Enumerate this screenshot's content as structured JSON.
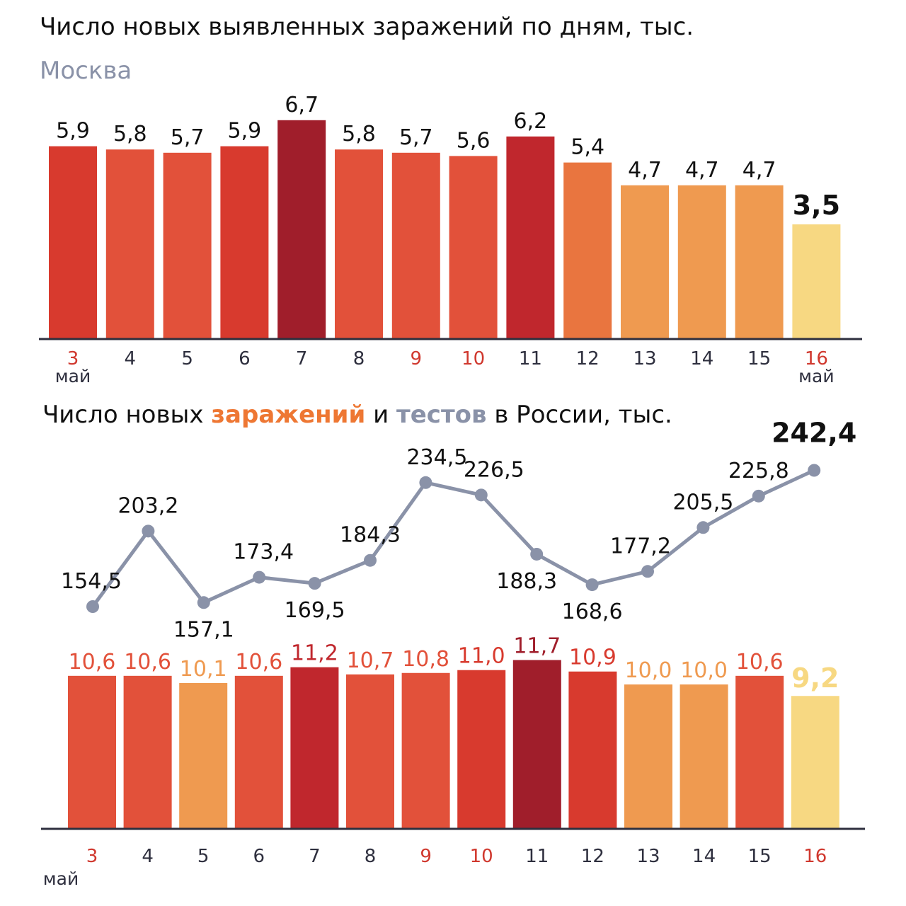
{
  "charts": {
    "moscow": {
      "title": "Число новых выявленных заражений по дням, тыс.",
      "subtitle": "Москва"
    },
    "russia": {
      "title_parts": [
        "Число новых ",
        "заражений",
        " и ",
        "тестов",
        " в России, тыс."
      ]
    }
  },
  "colors": {
    "darkest": "#a01e2b",
    "dark": "#c0272d",
    "red": "#d83a2e",
    "redorange": "#e2513a",
    "orange": "#e9753f",
    "lightorange": "#ef9a50",
    "yellow": "#f7d882",
    "axis": "#2e2f3e",
    "line": "#8a92a8",
    "weekend": "#d0382e",
    "text": "#111111"
  },
  "chart_data": [
    {
      "type": "bar",
      "title": "Число новых выявленных заражений по дням, тыс.",
      "subtitle": "Москва",
      "categories": [
        "3",
        "4",
        "5",
        "6",
        "7",
        "8",
        "9",
        "10",
        "11",
        "12",
        "13",
        "14",
        "15",
        "16"
      ],
      "month_label_start": "май",
      "month_label_end": "май",
      "values": [
        5.9,
        5.8,
        5.7,
        5.9,
        6.7,
        5.8,
        5.7,
        5.6,
        6.2,
        5.4,
        4.7,
        4.7,
        4.7,
        3.5
      ],
      "labels": [
        "5,9",
        "5,8",
        "5,7",
        "5,9",
        "6,7",
        "5,8",
        "5,7",
        "5,6",
        "6,2",
        "5,4",
        "4,7",
        "4,7",
        "4,7",
        "3,5"
      ],
      "bar_colors": [
        "red",
        "redorange",
        "redorange",
        "red",
        "darkest",
        "redorange",
        "redorange",
        "redorange",
        "dark",
        "orange",
        "lightorange",
        "lightorange",
        "lightorange",
        "yellow"
      ],
      "weekend_ticks": [
        "3",
        "9",
        "10",
        "16"
      ],
      "ylim": [
        0,
        7
      ]
    },
    {
      "type": "bar+line",
      "categories": [
        "3",
        "4",
        "5",
        "6",
        "7",
        "8",
        "9",
        "10",
        "11",
        "12",
        "13",
        "14",
        "15",
        "16"
      ],
      "month_label_start": "май",
      "series": [
        {
          "name": "тестов",
          "type": "line",
          "values": [
            154.5,
            203.2,
            157.1,
            173.4,
            169.5,
            184.3,
            234.5,
            226.5,
            188.3,
            168.6,
            177.2,
            205.5,
            225.8,
            242.4
          ],
          "labels": [
            "154,5",
            "203,2",
            "157,1",
            "173,4",
            "169,5",
            "184,3",
            "234,5",
            "226,5",
            "188,3",
            "168,6",
            "177,2",
            "205,5",
            "225,8",
            "242,4"
          ]
        },
        {
          "name": "заражений",
          "type": "bar",
          "values": [
            10.6,
            10.6,
            10.1,
            10.6,
            11.2,
            10.7,
            10.8,
            11.0,
            11.7,
            10.9,
            10.0,
            10.0,
            10.6,
            9.2
          ],
          "labels": [
            "10,6",
            "10,6",
            "10,1",
            "10,6",
            "11,2",
            "10,7",
            "10,8",
            "11,0",
            "11,7",
            "10,9",
            "10,0",
            "10,0",
            "10,6",
            "9,2"
          ],
          "bar_colors": [
            "redorange",
            "redorange",
            "lightorange",
            "redorange",
            "dark",
            "redorange",
            "redorange",
            "red",
            "darkest",
            "red",
            "lightorange",
            "lightorange",
            "redorange",
            "yellow"
          ]
        }
      ],
      "weekend_ticks": [
        "3",
        "9",
        "10",
        "16"
      ]
    }
  ]
}
